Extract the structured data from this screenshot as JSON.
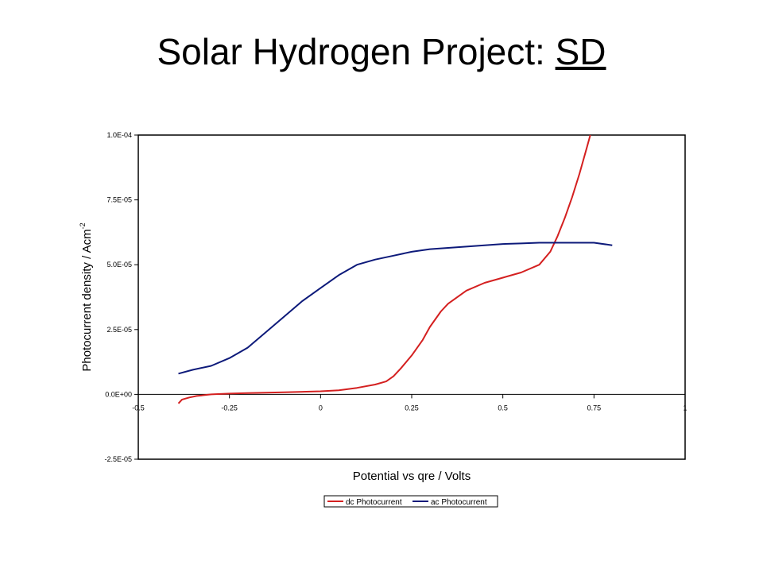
{
  "slide": {
    "title_main": "Solar Hydrogen Project: ",
    "title_underlined": "SD"
  },
  "colors": {
    "dc": "#d42020",
    "ac": "#0d1a7a",
    "frame": "#000000"
  },
  "chart_data": {
    "type": "line",
    "xlabel": "Potential vs qre / Volts",
    "ylabel": "Photocurrent density / Acm",
    "ylabel_superscript": "-2",
    "xlim": [
      -0.5,
      1
    ],
    "ylim": [
      -2.5e-05,
      0.0001
    ],
    "x_ticks": [
      "-0.5",
      "-0.25",
      "0",
      "0.25",
      "0.5",
      "0.75",
      "1"
    ],
    "x_tick_values": [
      -0.5,
      -0.25,
      0,
      0.25,
      0.5,
      0.75,
      1
    ],
    "y_ticks": [
      "-2.5E-05",
      "0.0E+00",
      "2.5E-05",
      "5.0E-05",
      "7.5E-05",
      "1.0E-04"
    ],
    "y_tick_values": [
      -2.5e-05,
      0,
      2.5e-05,
      5e-05,
      7.5e-05,
      0.0001
    ],
    "grid": false,
    "legend_position": "bottom",
    "series": [
      {
        "name": "dc Photocurrent",
        "x": [
          -0.39,
          -0.38,
          -0.36,
          -0.34,
          -0.3,
          -0.25,
          -0.2,
          -0.1,
          0.0,
          0.05,
          0.1,
          0.15,
          0.18,
          0.2,
          0.22,
          0.25,
          0.28,
          0.3,
          0.33,
          0.35,
          0.4,
          0.45,
          0.5,
          0.55,
          0.6,
          0.63,
          0.65,
          0.67,
          0.69,
          0.71,
          0.73,
          0.74
        ],
        "y": [
          -3.5e-06,
          -2e-06,
          -1.2e-06,
          -6e-07,
          0.0,
          3e-07,
          5e-07,
          8e-07,
          1.2e-06,
          1.6e-06,
          2.5e-06,
          3.8e-06,
          5e-06,
          7e-06,
          1e-05,
          1.5e-05,
          2.1e-05,
          2.6e-05,
          3.2e-05,
          3.5e-05,
          4e-05,
          4.3e-05,
          4.5e-05,
          4.7e-05,
          5e-05,
          5.5e-05,
          6.1e-05,
          6.8e-05,
          7.6e-05,
          8.5e-05,
          9.5e-05,
          0.0001
        ]
      },
      {
        "name": "ac Photocurrent",
        "x": [
          -0.39,
          -0.35,
          -0.3,
          -0.25,
          -0.2,
          -0.15,
          -0.1,
          -0.05,
          0.0,
          0.05,
          0.1,
          0.15,
          0.2,
          0.25,
          0.3,
          0.35,
          0.4,
          0.45,
          0.5,
          0.55,
          0.6,
          0.65,
          0.7,
          0.75,
          0.8
        ],
        "y": [
          8e-06,
          9.5e-06,
          1.1e-05,
          1.4e-05,
          1.8e-05,
          2.4e-05,
          3e-05,
          3.6e-05,
          4.1e-05,
          4.6e-05,
          5e-05,
          5.2e-05,
          5.35e-05,
          5.5e-05,
          5.6e-05,
          5.65e-05,
          5.7e-05,
          5.75e-05,
          5.8e-05,
          5.82e-05,
          5.85e-05,
          5.85e-05,
          5.85e-05,
          5.85e-05,
          5.75e-05
        ]
      }
    ]
  }
}
